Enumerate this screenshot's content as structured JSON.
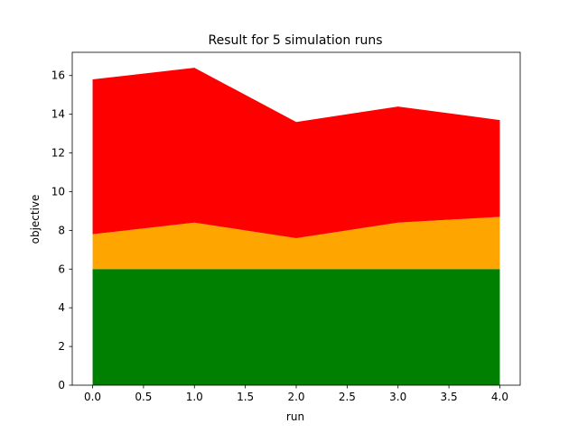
{
  "chart_data": {
    "type": "area",
    "stacked": true,
    "title": "Result for 5 simulation runs",
    "xlabel": "run",
    "ylabel": "objective",
    "x": [
      0,
      1,
      2,
      3,
      4
    ],
    "xlim": [
      -0.2,
      4.2
    ],
    "ylim": [
      0,
      17.2
    ],
    "xticks": [
      0.0,
      0.5,
      1.0,
      1.5,
      2.0,
      2.5,
      3.0,
      3.5,
      4.0
    ],
    "xtick_labels": [
      "0.0",
      "0.5",
      "1.0",
      "1.5",
      "2.0",
      "2.5",
      "3.0",
      "3.5",
      "4.0"
    ],
    "yticks": [
      0,
      2,
      4,
      6,
      8,
      10,
      12,
      14,
      16
    ],
    "ytick_labels": [
      "0",
      "2",
      "4",
      "6",
      "8",
      "10",
      "12",
      "14",
      "16"
    ],
    "grid": false,
    "series": [
      {
        "color": "#008000",
        "values": [
          6.0,
          6.0,
          6.0,
          6.0,
          6.0
        ]
      },
      {
        "color": "#ffa500",
        "values": [
          1.8,
          2.4,
          1.6,
          2.4,
          2.7
        ]
      },
      {
        "color": "#ff0000",
        "values": [
          8.0,
          8.0,
          6.0,
          6.0,
          5.0
        ]
      }
    ]
  }
}
